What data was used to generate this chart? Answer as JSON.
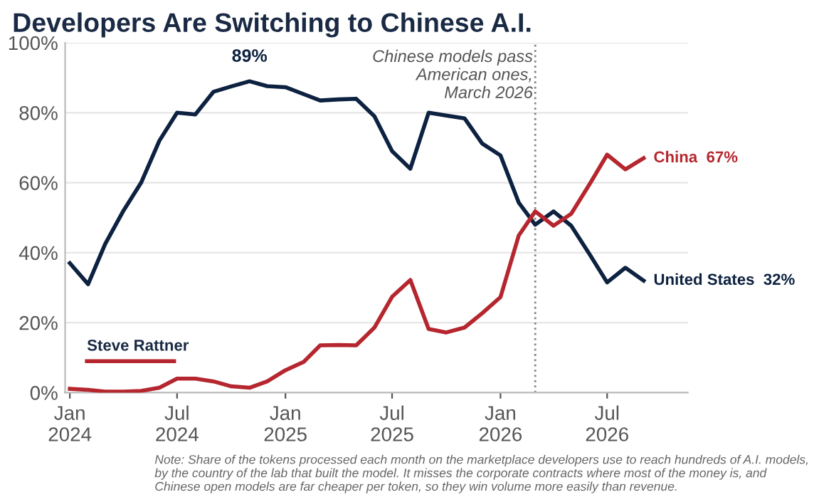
{
  "chart_data": {
    "type": "line",
    "title": "Developers Are Switching to Chinese A.I.",
    "x": [
      "2024-01",
      "2024-02",
      "2024-03",
      "2024-04",
      "2024-05",
      "2024-06",
      "2024-07",
      "2024-08",
      "2024-09",
      "2024-10",
      "2024-11",
      "2024-12",
      "2025-01",
      "2025-02",
      "2025-03",
      "2025-04",
      "2025-05",
      "2025-06",
      "2025-07",
      "2025-08",
      "2025-09",
      "2025-10",
      "2025-11",
      "2025-12",
      "2026-01",
      "2026-02",
      "2026-03",
      "2026-04",
      "2026-05",
      "2026-06",
      "2026-07",
      "2026-08",
      "2026-09"
    ],
    "series": [
      {
        "name": "United States",
        "color": "#0d2240",
        "values": [
          37,
          31,
          42.5,
          52,
          60,
          72,
          80,
          79.5,
          86,
          87.5,
          89,
          87.6,
          87.3,
          85.3,
          83.5,
          83.8,
          84,
          79,
          69,
          64,
          80,
          79.2,
          78.4,
          71.2,
          67.8,
          54.3,
          48,
          51.8,
          47.7,
          39.6,
          31.5,
          35.7,
          32
        ],
        "value_labels": [
          null,
          null,
          null,
          null,
          null,
          null,
          null,
          null,
          null,
          null,
          "89%",
          null,
          null,
          null,
          null,
          null,
          null,
          null,
          null,
          null,
          null,
          null,
          null,
          null,
          null,
          null,
          null,
          null,
          null,
          null,
          null,
          null,
          "32%"
        ]
      },
      {
        "name": "China",
        "color": "#b5262e",
        "values": [
          1.1,
          0.8,
          0.3,
          0.3,
          0.5,
          1.4,
          4,
          4,
          3.2,
          1.8,
          1.4,
          3.2,
          6.4,
          8.8,
          13.5,
          13.6,
          13.5,
          18.6,
          27.4,
          32.2,
          18.2,
          17.2,
          18.6,
          22.7,
          27.3,
          44.9,
          51.8,
          47.7,
          51.1,
          59.5,
          68,
          63.8,
          67
        ],
        "value_labels": [
          null,
          null,
          null,
          null,
          null,
          null,
          null,
          null,
          null,
          null,
          null,
          null,
          null,
          null,
          null,
          null,
          null,
          null,
          null,
          null,
          null,
          null,
          null,
          null,
          null,
          null,
          null,
          null,
          null,
          null,
          null,
          null,
          "67%"
        ]
      }
    ],
    "xlim": [
      "2023-12-24",
      "2026-11-15"
    ],
    "xticks": [
      {
        "value": "2024-01",
        "label": "Jan\n2024"
      },
      {
        "value": "2024-07",
        "label": "Jul\n2024"
      },
      {
        "value": "2025-01",
        "label": "Jan\n2025"
      },
      {
        "value": "2025-07",
        "label": "Jul\n2025"
      },
      {
        "value": "2026-01",
        "label": "Jan\n2026"
      },
      {
        "value": "2026-07",
        "label": "Jul\n2026"
      }
    ],
    "ylim": [
      0,
      100
    ],
    "yticks": [
      {
        "value": 0,
        "label": "0%"
      },
      {
        "value": 20,
        "label": "20%"
      },
      {
        "value": 40,
        "label": "40%"
      },
      {
        "value": 60,
        "label": "60%"
      },
      {
        "value": 80,
        "label": "80%"
      },
      {
        "value": 100,
        "label": "100%"
      }
    ],
    "grid": "y",
    "legend": false,
    "marker": "none",
    "line_style": "solid",
    "ref_lines": [
      {
        "axis": "x",
        "value": "2026-03",
        "label": "Chinese models pass\nAmerican ones,\nMarch 2026",
        "color": "#888888",
        "line_style": "dotted"
      }
    ],
    "annotations": [
      "Steve Rattner",
      "Note: Share of the tokens processed each month on the marketplace developers use to reach hundreds of A.I. models, by the country of the lab that built the model. It misses the corporate contracts where most of the money is, and Chinese open models are far cheaper per token, so they win volume more easily than revenue."
    ]
  }
}
